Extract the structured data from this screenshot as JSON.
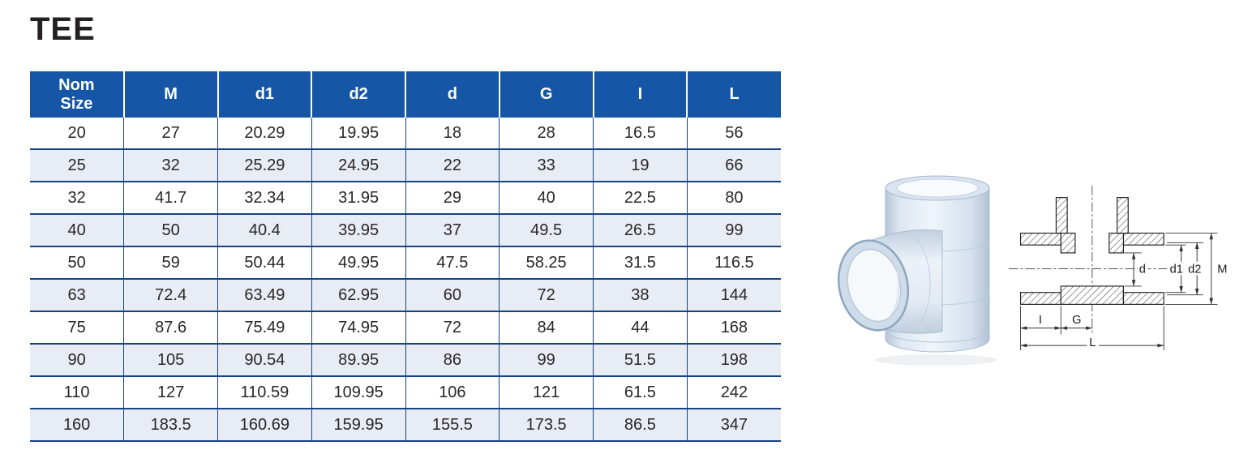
{
  "title": "TEE",
  "table": {
    "columns": [
      "Nom Size",
      "M",
      "d1",
      "d2",
      "d",
      "G",
      "I",
      "L"
    ],
    "rows": [
      [
        "20",
        "27",
        "20.29",
        "19.95",
        "18",
        "28",
        "16.5",
        "56"
      ],
      [
        "25",
        "32",
        "25.29",
        "24.95",
        "22",
        "33",
        "19",
        "66"
      ],
      [
        "32",
        "41.7",
        "32.34",
        "31.95",
        "29",
        "40",
        "22.5",
        "80"
      ],
      [
        "40",
        "50",
        "40.4",
        "39.95",
        "37",
        "49.5",
        "26.5",
        "99"
      ],
      [
        "50",
        "59",
        "50.44",
        "49.95",
        "47.5",
        "58.25",
        "31.5",
        "116.5"
      ],
      [
        "63",
        "72.4",
        "63.49",
        "62.95",
        "60",
        "72",
        "38",
        "144"
      ],
      [
        "75",
        "87.6",
        "75.49",
        "74.95",
        "72",
        "84",
        "44",
        "168"
      ],
      [
        "90",
        "105",
        "90.54",
        "89.95",
        "86",
        "99",
        "51.5",
        "198"
      ],
      [
        "110",
        "127",
        "110.59",
        "109.95",
        "106",
        "121",
        "61.5",
        "242"
      ],
      [
        "160",
        "183.5",
        "160.69",
        "159.95",
        "155.5",
        "173.5",
        "86.5",
        "347"
      ]
    ]
  },
  "photo": "clear-pvc-tee-fitting",
  "diagram": {
    "labels": {
      "d": "d",
      "d1": "d1",
      "d2": "d2",
      "M": "M",
      "I": "I",
      "G": "G",
      "L": "L"
    }
  },
  "colors": {
    "header_bg": "#1557A6",
    "border_blue": "#164384",
    "row_alt": "#E8ECF4",
    "text_dark": "#2A2627"
  }
}
